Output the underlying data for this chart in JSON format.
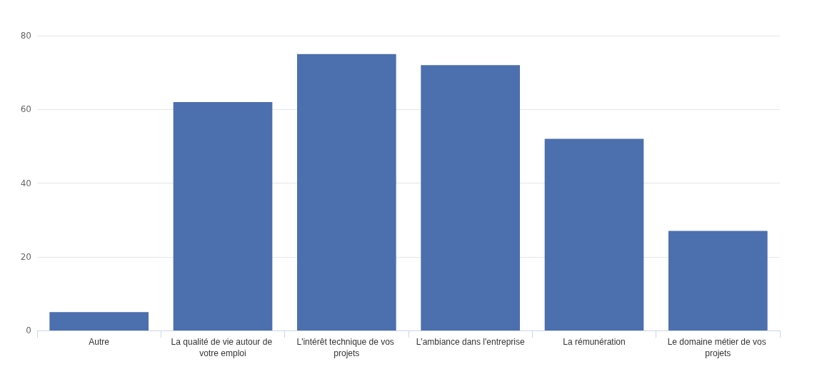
{
  "chart_data": {
    "type": "bar",
    "categories": [
      "Autre",
      "La qualité de vie autour de votre emploi",
      "L'intérêt technique de vos projets",
      "L'ambiance dans l'entreprise",
      "La rémunération",
      "Le domaine métier de vos projets"
    ],
    "values": [
      5,
      62,
      75,
      72,
      52,
      27
    ],
    "color": "#4c6fae",
    "ylim": [
      0,
      80
    ],
    "yticks": [
      0,
      20,
      40,
      60,
      80
    ],
    "grid": "y"
  }
}
